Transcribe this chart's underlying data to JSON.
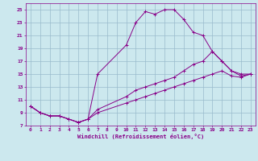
{
  "xlabel": "Windchill (Refroidissement éolien,°C)",
  "bg_color": "#cce8ee",
  "line_color": "#880088",
  "grid_color": "#99bbcc",
  "xlim": [
    -0.5,
    23.5
  ],
  "ylim": [
    7,
    26
  ],
  "xticks": [
    0,
    1,
    2,
    3,
    4,
    5,
    6,
    7,
    8,
    9,
    10,
    11,
    12,
    13,
    14,
    15,
    16,
    17,
    18,
    19,
    20,
    21,
    22,
    23
  ],
  "yticks": [
    7,
    9,
    11,
    13,
    15,
    17,
    19,
    21,
    23,
    25
  ],
  "series": [
    {
      "x": [
        0,
        1,
        2,
        3,
        4,
        5,
        6,
        7,
        10,
        11,
        12,
        13,
        14,
        15,
        16,
        17,
        18,
        19,
        20,
        21,
        22,
        23
      ],
      "y": [
        10,
        9,
        8.5,
        8.5,
        8,
        7.5,
        8,
        15,
        19.5,
        23,
        24.7,
        24.3,
        25,
        25,
        23.5,
        21.5,
        21,
        18.5,
        17,
        15.5,
        15,
        15
      ]
    },
    {
      "x": [
        0,
        1,
        2,
        3,
        4,
        5,
        6,
        7,
        10,
        11,
        12,
        13,
        14,
        15,
        16,
        17,
        18,
        19,
        20,
        21,
        22,
        23
      ],
      "y": [
        10,
        9,
        8.5,
        8.5,
        8,
        7.5,
        8,
        9.5,
        11.5,
        12.5,
        13,
        13.5,
        14,
        14.5,
        15.5,
        16.5,
        17,
        18.5,
        17,
        15.5,
        14.7,
        15
      ]
    },
    {
      "x": [
        0,
        1,
        2,
        3,
        4,
        5,
        6,
        7,
        10,
        11,
        12,
        13,
        14,
        15,
        16,
        17,
        18,
        19,
        20,
        21,
        22,
        23
      ],
      "y": [
        10,
        9,
        8.5,
        8.5,
        8,
        7.5,
        8,
        9,
        10.5,
        11,
        11.5,
        12,
        12.5,
        13,
        13.5,
        14,
        14.5,
        15,
        15.5,
        14.7,
        14.5,
        15
      ]
    }
  ]
}
